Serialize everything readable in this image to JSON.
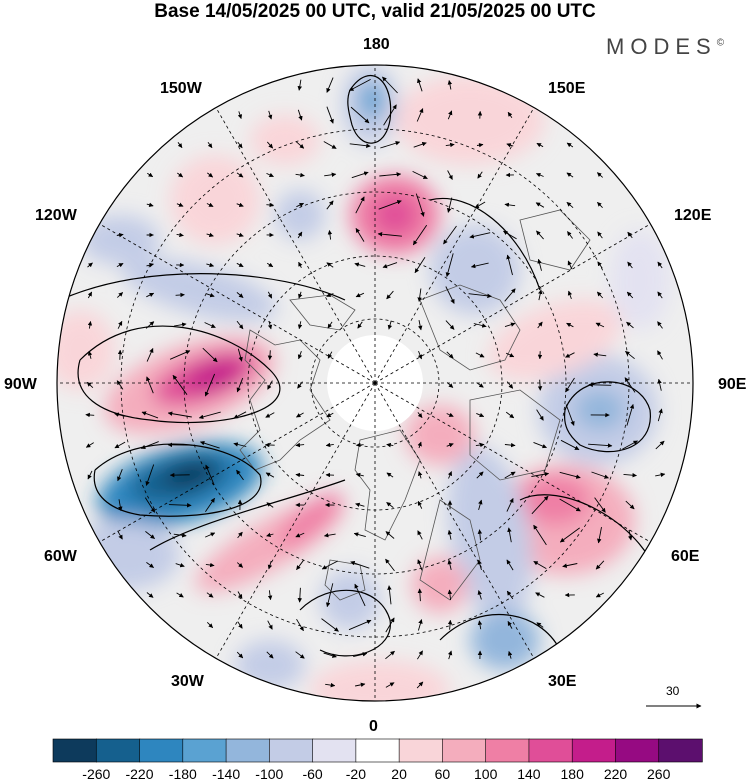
{
  "title": "Base 14/05/2025 00 UTC, valid 21/05/2025 00 UTC",
  "logo": "MODES",
  "logo_mark": "©",
  "longitude_labels": {
    "top": "180",
    "bottom": "0",
    "left": "90W",
    "right": "90E",
    "upper_left_1": "150W",
    "upper_left_2": "120W",
    "lower_left_1": "60W",
    "lower_left_2": "30W",
    "upper_right_1": "150E",
    "upper_right_2": "120E",
    "lower_right_1": "60E",
    "lower_right_2": "30E"
  },
  "reference_vector_label": "30",
  "colorbar": {
    "labels": [
      "-260",
      "-220",
      "-180",
      "-140",
      "-100",
      "-60",
      "-20",
      "20",
      "60",
      "100",
      "140",
      "180",
      "220",
      "260"
    ],
    "colors": [
      "#0d3a5c",
      "#15608e",
      "#2e86bf",
      "#5aa2d2",
      "#93b6dc",
      "#c3cce6",
      "#e3e2f1",
      "#ffffff",
      "#f9d5d9",
      "#f4adbd",
      "#ef7fa5",
      "#e04e98",
      "#c41d8b",
      "#960a82",
      "#5c0f6e"
    ]
  },
  "map_style": {
    "background": "#efefef",
    "land_outline": "#555555",
    "graticule": "dashed",
    "contour_color": "#000000"
  }
}
